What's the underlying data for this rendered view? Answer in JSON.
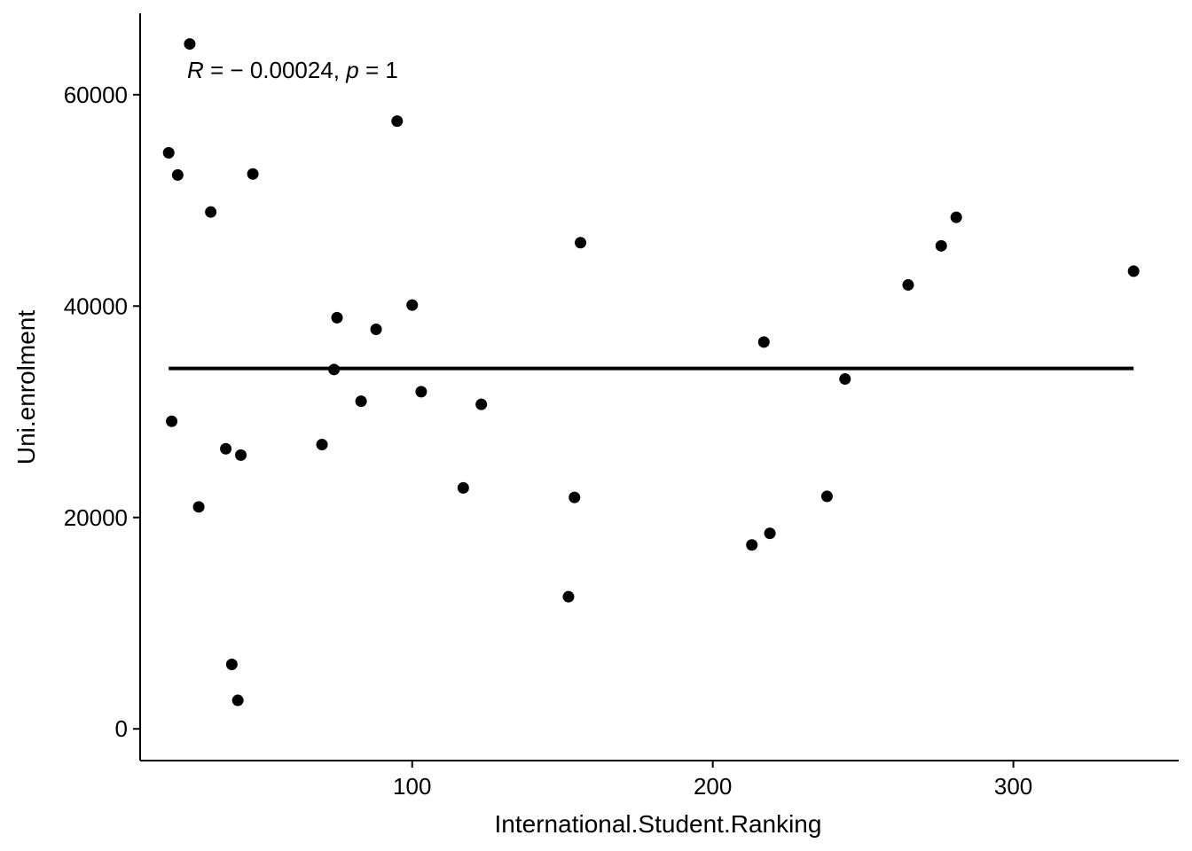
{
  "chart_data": {
    "type": "scatter",
    "xlabel": "International.Student.Ranking",
    "ylabel": "Uni.enrolment",
    "xlim": [
      9.5,
      355
    ],
    "ylim": [
      -3000,
      67700
    ],
    "x_ticks": [
      100,
      200,
      300
    ],
    "y_ticks": [
      0,
      20000,
      40000,
      60000
    ],
    "grid": false,
    "annotation": {
      "r_symbol": "R",
      "r_text": " = − 0.00024, ",
      "p_symbol": "p",
      "p_text": " = 1"
    },
    "fit_line": {
      "x": [
        19,
        340
      ],
      "y": [
        34100,
        34100
      ]
    },
    "points": [
      {
        "x": 19,
        "y": 54500
      },
      {
        "x": 20,
        "y": 29100
      },
      {
        "x": 22,
        "y": 52400
      },
      {
        "x": 26,
        "y": 64800
      },
      {
        "x": 29,
        "y": 21000
      },
      {
        "x": 33,
        "y": 48900
      },
      {
        "x": 38,
        "y": 26500
      },
      {
        "x": 40,
        "y": 6100
      },
      {
        "x": 42,
        "y": 2700
      },
      {
        "x": 43,
        "y": 25900
      },
      {
        "x": 47,
        "y": 52500
      },
      {
        "x": 70,
        "y": 26900
      },
      {
        "x": 74,
        "y": 34000
      },
      {
        "x": 75,
        "y": 38900
      },
      {
        "x": 83,
        "y": 31000
      },
      {
        "x": 88,
        "y": 37800
      },
      {
        "x": 95,
        "y": 57500
      },
      {
        "x": 100,
        "y": 40100
      },
      {
        "x": 103,
        "y": 31900
      },
      {
        "x": 117,
        "y": 22800
      },
      {
        "x": 123,
        "y": 30700
      },
      {
        "x": 152,
        "y": 12500
      },
      {
        "x": 154,
        "y": 21900
      },
      {
        "x": 156,
        "y": 46000
      },
      {
        "x": 213,
        "y": 17400
      },
      {
        "x": 217,
        "y": 36600
      },
      {
        "x": 219,
        "y": 18500
      },
      {
        "x": 238,
        "y": 22000
      },
      {
        "x": 244,
        "y": 33100
      },
      {
        "x": 265,
        "y": 42000
      },
      {
        "x": 276,
        "y": 45700
      },
      {
        "x": 281,
        "y": 48400
      },
      {
        "x": 340,
        "y": 43300
      }
    ]
  }
}
